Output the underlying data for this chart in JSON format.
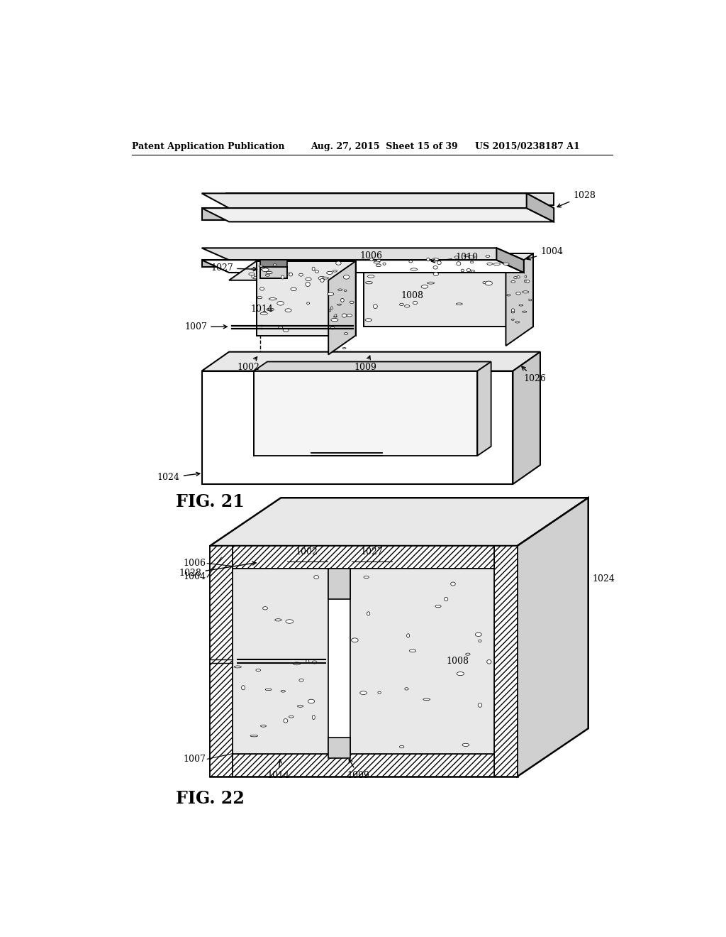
{
  "background_color": "#ffffff",
  "header_left": "Patent Application Publication",
  "header_center": "Aug. 27, 2015  Sheet 15 of 39",
  "header_right": "US 2015/0238187 A1",
  "fig21_label": "FIG. 21",
  "fig22_label": "FIG. 22"
}
